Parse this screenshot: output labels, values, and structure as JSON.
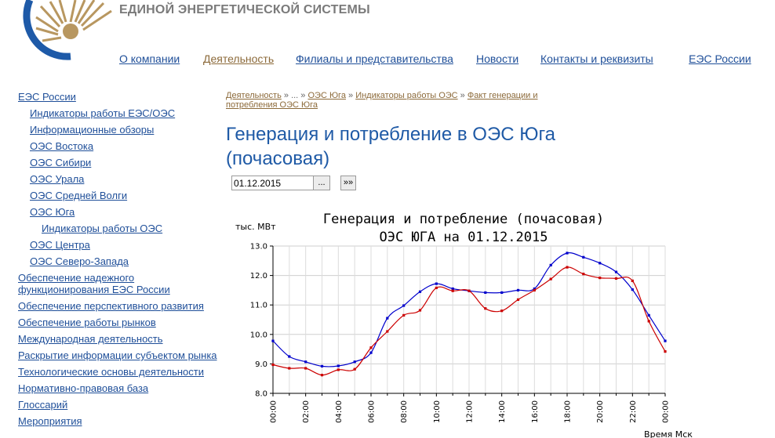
{
  "header": {
    "org_title": "ЕДИНОЙ ЭНЕРГЕТИЧЕСКОЙ СИСТЕМЫ",
    "logo_icon": "energy-system-logo-icon"
  },
  "nav": {
    "items": [
      {
        "label": "О компании",
        "active": false
      },
      {
        "label": "Деятельность",
        "active": true
      },
      {
        "label": "Филиалы и представительства",
        "active": false
      },
      {
        "label": "Новости",
        "active": false
      },
      {
        "label": "Контакты и реквизиты",
        "active": false
      },
      {
        "label": "ЕЭС России",
        "active": false
      }
    ]
  },
  "sidebar": {
    "items": [
      {
        "label": "ЕЭС России",
        "level": 0
      },
      {
        "label": "Индикаторы работы ЕЭС/ОЭС",
        "level": 1
      },
      {
        "label": "Информационные обзоры",
        "level": 1
      },
      {
        "label": "ОЭС Востока",
        "level": 1
      },
      {
        "label": "ОЭС Сибири",
        "level": 1
      },
      {
        "label": "ОЭС Урала",
        "level": 1
      },
      {
        "label": "ОЭС Средней Волги",
        "level": 1
      },
      {
        "label": "ОЭС Юга",
        "level": 1
      },
      {
        "label": "Индикаторы работы ОЭС",
        "level": 2
      },
      {
        "label": "ОЭС Центра",
        "level": 1
      },
      {
        "label": "ОЭС Северо-Запада",
        "level": 1
      },
      {
        "label": "Обеспечение надежного функционирования ЕЭС России",
        "level": 0
      },
      {
        "label": "Обеспечение перспективного развития",
        "level": 0
      },
      {
        "label": "Обеспечение работы рынков",
        "level": 0
      },
      {
        "label": "Международная деятельность",
        "level": 0
      },
      {
        "label": "Раскрытие информации субъектом рынка",
        "level": 0
      },
      {
        "label": "Технологические основы деятельности",
        "level": 0
      },
      {
        "label": "Нормативно-правовая база",
        "level": 0
      },
      {
        "label": "Глоссарий",
        "level": 0
      },
      {
        "label": "Мероприятия",
        "level": 0
      }
    ]
  },
  "breadcrumb": {
    "items": [
      "Деятельность",
      "...",
      "ОЭС Юга",
      "Индикаторы работы ОЭС",
      "Факт генерации и потребления ОЭС Юга"
    ],
    "separator": "»"
  },
  "page": {
    "title": "Генерация и потребление в ОЭС Юга (почасовая)"
  },
  "date_picker": {
    "value": "01.12.2015",
    "pick_label": "...",
    "next_label": "»»"
  },
  "chart_data": {
    "type": "line",
    "title": "Генерация и потребление (почасовая)",
    "subtitle": "ОЭС ЮГА на 01.12.2015",
    "ylabel": "тыс. МВт",
    "xlabel": "Время Мск",
    "ylim": [
      8.0,
      13.0
    ],
    "y_ticks": [
      "8.0",
      "9.0",
      "10.0",
      "11.0",
      "12.0",
      "13.0"
    ],
    "x_ticks": [
      "00:00",
      "02:00",
      "04:00",
      "06:00",
      "08:00",
      "10:00",
      "12:00",
      "14:00",
      "16:00",
      "18:00",
      "20:00",
      "22:00",
      "00:00"
    ],
    "x_hours": [
      0,
      1,
      2,
      3,
      4,
      5,
      6,
      7,
      8,
      9,
      10,
      11,
      12,
      13,
      14,
      15,
      16,
      17,
      18,
      19,
      20,
      21,
      22,
      23,
      24
    ],
    "grid": true,
    "series": [
      {
        "color": "#0000cc",
        "values": [
          9.78,
          9.25,
          9.07,
          8.92,
          8.93,
          9.07,
          9.38,
          10.55,
          10.98,
          11.45,
          11.72,
          11.55,
          11.48,
          11.42,
          11.42,
          11.5,
          11.55,
          12.35,
          12.76,
          12.62,
          12.42,
          12.12,
          11.52,
          10.65,
          9.78
        ]
      },
      {
        "color": "#cc0000",
        "values": [
          8.97,
          8.85,
          8.85,
          8.62,
          8.8,
          8.82,
          9.55,
          10.1,
          10.65,
          10.82,
          11.58,
          11.48,
          11.48,
          10.88,
          10.8,
          11.18,
          11.5,
          11.88,
          12.28,
          12.05,
          11.92,
          11.9,
          11.82,
          10.45,
          9.42
        ]
      }
    ]
  }
}
